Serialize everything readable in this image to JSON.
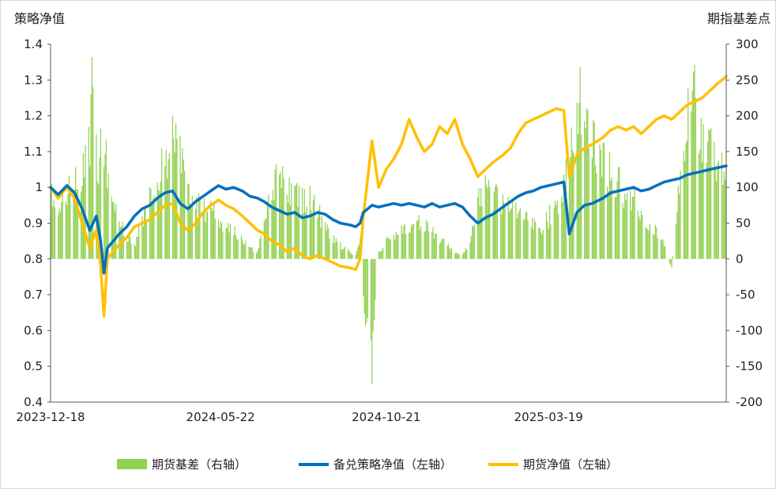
{
  "chart_data": {
    "type": "bar+line",
    "left_axis_title": "策略净值",
    "right_axis_title": "期指基差点",
    "left_ylim": [
      0.4,
      1.4
    ],
    "left_ticks": [
      "1.4",
      "1.3",
      "1.2",
      "1.1",
      "1",
      "0.9",
      "0.8",
      "0.7",
      "0.6",
      "0.5",
      "0.4"
    ],
    "right_ylim": [
      -200,
      300
    ],
    "right_ticks": [
      "300",
      "250",
      "200",
      "150",
      "100",
      "50",
      "0",
      "-50",
      "-100",
      "-150",
      "-200"
    ],
    "x_ticks": [
      "2023-12-18",
      "2024-05-22",
      "2024-10-21",
      "2025-03-19"
    ],
    "x_range": [
      "2023-12-18",
      "2025-08-29"
    ],
    "grid": false,
    "legend_position": "bottom",
    "series": [
      {
        "name": "期货基差（右轴）",
        "type": "bar",
        "axis": "right",
        "color": "#92d050",
        "points": [
          [
            "2023-12-18",
            90
          ],
          [
            "2023-12-25",
            75
          ],
          [
            "2024-01-02",
            95
          ],
          [
            "2024-01-09",
            110
          ],
          [
            "2024-01-16",
            135
          ],
          [
            "2024-01-23",
            185
          ],
          [
            "2024-01-26",
            280
          ],
          [
            "2024-01-30",
            120
          ],
          [
            "2024-02-02",
            200
          ],
          [
            "2024-02-08",
            140
          ],
          [
            "2024-02-19",
            60
          ],
          [
            "2024-02-26",
            35
          ],
          [
            "2024-03-04",
            20
          ],
          [
            "2024-03-11",
            55
          ],
          [
            "2024-03-18",
            90
          ],
          [
            "2024-03-25",
            120
          ],
          [
            "2024-04-01",
            145
          ],
          [
            "2024-04-08",
            170
          ],
          [
            "2024-04-15",
            150
          ],
          [
            "2024-04-22",
            110
          ],
          [
            "2024-04-29",
            85
          ],
          [
            "2024-05-06",
            70
          ],
          [
            "2024-05-13",
            80
          ],
          [
            "2024-05-20",
            60
          ],
          [
            "2024-05-27",
            45
          ],
          [
            "2024-06-03",
            40
          ],
          [
            "2024-06-11",
            30
          ],
          [
            "2024-06-18",
            15
          ],
          [
            "2024-06-25",
            10
          ],
          [
            "2024-07-01",
            55
          ],
          [
            "2024-07-08",
            115
          ],
          [
            "2024-07-15",
            120
          ],
          [
            "2024-07-22",
            110
          ],
          [
            "2024-07-29",
            100
          ],
          [
            "2024-08-05",
            85
          ],
          [
            "2024-08-12",
            90
          ],
          [
            "2024-08-19",
            70
          ],
          [
            "2024-08-26",
            50
          ],
          [
            "2024-09-02",
            30
          ],
          [
            "2024-09-09",
            20
          ],
          [
            "2024-09-18",
            10
          ],
          [
            "2024-09-23",
            5
          ],
          [
            "2024-09-27",
            30
          ],
          [
            "2024-09-30",
            -55
          ],
          [
            "2024-10-08",
            -160
          ],
          [
            "2024-10-14",
            10
          ],
          [
            "2024-10-21",
            25
          ],
          [
            "2024-10-28",
            35
          ],
          [
            "2024-11-04",
            40
          ],
          [
            "2024-11-11",
            45
          ],
          [
            "2024-11-18",
            55
          ],
          [
            "2024-11-25",
            50
          ],
          [
            "2024-12-02",
            40
          ],
          [
            "2024-12-09",
            30
          ],
          [
            "2024-12-16",
            20
          ],
          [
            "2024-12-23",
            10
          ],
          [
            "2024-12-30",
            5
          ],
          [
            "2025-01-06",
            25
          ],
          [
            "2025-01-13",
            90
          ],
          [
            "2025-01-20",
            100
          ],
          [
            "2025-01-27",
            95
          ],
          [
            "2025-02-05",
            85
          ],
          [
            "2025-02-12",
            75
          ],
          [
            "2025-02-19",
            65
          ],
          [
            "2025-02-26",
            55
          ],
          [
            "2025-03-05",
            50
          ],
          [
            "2025-03-12",
            45
          ],
          [
            "2025-03-19",
            60
          ],
          [
            "2025-03-26",
            80
          ],
          [
            "2025-04-02",
            100
          ],
          [
            "2025-04-09",
            195
          ],
          [
            "2025-04-16",
            230
          ],
          [
            "2025-04-23",
            200
          ],
          [
            "2025-04-30",
            160
          ],
          [
            "2025-05-08",
            145
          ],
          [
            "2025-05-15",
            130
          ],
          [
            "2025-05-22",
            110
          ],
          [
            "2025-05-29",
            95
          ],
          [
            "2025-06-05",
            85
          ],
          [
            "2025-06-12",
            70
          ],
          [
            "2025-06-19",
            55
          ],
          [
            "2025-06-26",
            40
          ],
          [
            "2025-07-03",
            20
          ],
          [
            "2025-07-10",
            -15
          ],
          [
            "2025-07-17",
            120
          ],
          [
            "2025-07-24",
            215
          ],
          [
            "2025-07-31",
            235
          ],
          [
            "2025-08-07",
            180
          ],
          [
            "2025-08-14",
            160
          ],
          [
            "2025-08-21",
            150
          ],
          [
            "2025-08-29",
            140
          ]
        ]
      },
      {
        "name": "备兑策略净值（左轴）",
        "type": "line",
        "axis": "left",
        "color": "#0070c0",
        "points": [
          [
            "2023-12-18",
            1.0
          ],
          [
            "2023-12-25",
            0.98
          ],
          [
            "2024-01-02",
            1.005
          ],
          [
            "2024-01-09",
            0.985
          ],
          [
            "2024-01-16",
            0.94
          ],
          [
            "2024-01-23",
            0.88
          ],
          [
            "2024-01-29",
            0.92
          ],
          [
            "2024-02-02",
            0.85
          ],
          [
            "2024-02-05",
            0.76
          ],
          [
            "2024-02-08",
            0.83
          ],
          [
            "2024-02-19",
            0.87
          ],
          [
            "2024-02-26",
            0.89
          ],
          [
            "2024-03-04",
            0.92
          ],
          [
            "2024-03-11",
            0.94
          ],
          [
            "2024-03-18",
            0.95
          ],
          [
            "2024-03-25",
            0.97
          ],
          [
            "2024-04-01",
            0.985
          ],
          [
            "2024-04-08",
            0.99
          ],
          [
            "2024-04-15",
            0.955
          ],
          [
            "2024-04-22",
            0.94
          ],
          [
            "2024-04-29",
            0.96
          ],
          [
            "2024-05-06",
            0.975
          ],
          [
            "2024-05-13",
            0.99
          ],
          [
            "2024-05-20",
            1.005
          ],
          [
            "2024-05-27",
            0.995
          ],
          [
            "2024-06-03",
            1.0
          ],
          [
            "2024-06-11",
            0.99
          ],
          [
            "2024-06-18",
            0.975
          ],
          [
            "2024-06-25",
            0.97
          ],
          [
            "2024-07-01",
            0.96
          ],
          [
            "2024-07-08",
            0.945
          ],
          [
            "2024-07-15",
            0.935
          ],
          [
            "2024-07-22",
            0.925
          ],
          [
            "2024-07-29",
            0.93
          ],
          [
            "2024-08-05",
            0.915
          ],
          [
            "2024-08-12",
            0.92
          ],
          [
            "2024-08-19",
            0.93
          ],
          [
            "2024-08-26",
            0.925
          ],
          [
            "2024-09-02",
            0.91
          ],
          [
            "2024-09-09",
            0.9
          ],
          [
            "2024-09-18",
            0.895
          ],
          [
            "2024-09-23",
            0.89
          ],
          [
            "2024-09-27",
            0.9
          ],
          [
            "2024-09-30",
            0.93
          ],
          [
            "2024-10-08",
            0.95
          ],
          [
            "2024-10-14",
            0.945
          ],
          [
            "2024-10-21",
            0.95
          ],
          [
            "2024-10-28",
            0.955
          ],
          [
            "2024-11-04",
            0.95
          ],
          [
            "2024-11-11",
            0.955
          ],
          [
            "2024-11-18",
            0.95
          ],
          [
            "2024-11-25",
            0.945
          ],
          [
            "2024-12-02",
            0.955
          ],
          [
            "2024-12-09",
            0.945
          ],
          [
            "2024-12-16",
            0.95
          ],
          [
            "2024-12-23",
            0.955
          ],
          [
            "2024-12-30",
            0.945
          ],
          [
            "2025-01-06",
            0.92
          ],
          [
            "2025-01-13",
            0.9
          ],
          [
            "2025-01-20",
            0.915
          ],
          [
            "2025-01-27",
            0.925
          ],
          [
            "2025-02-05",
            0.945
          ],
          [
            "2025-02-12",
            0.96
          ],
          [
            "2025-02-19",
            0.975
          ],
          [
            "2025-02-26",
            0.985
          ],
          [
            "2025-03-05",
            0.99
          ],
          [
            "2025-03-12",
            1.0
          ],
          [
            "2025-03-19",
            1.005
          ],
          [
            "2025-03-26",
            1.01
          ],
          [
            "2025-04-02",
            1.015
          ],
          [
            "2025-04-07",
            0.87
          ],
          [
            "2025-04-14",
            0.93
          ],
          [
            "2025-04-21",
            0.95
          ],
          [
            "2025-04-28",
            0.955
          ],
          [
            "2025-05-08",
            0.97
          ],
          [
            "2025-05-15",
            0.985
          ],
          [
            "2025-05-22",
            0.99
          ],
          [
            "2025-05-29",
            0.995
          ],
          [
            "2025-06-05",
            1.0
          ],
          [
            "2025-06-12",
            0.99
          ],
          [
            "2025-06-19",
            0.995
          ],
          [
            "2025-06-26",
            1.005
          ],
          [
            "2025-07-03",
            1.015
          ],
          [
            "2025-07-10",
            1.02
          ],
          [
            "2025-07-17",
            1.025
          ],
          [
            "2025-07-24",
            1.035
          ],
          [
            "2025-07-31",
            1.04
          ],
          [
            "2025-08-07",
            1.045
          ],
          [
            "2025-08-14",
            1.05
          ],
          [
            "2025-08-21",
            1.055
          ],
          [
            "2025-08-29",
            1.06
          ]
        ]
      },
      {
        "name": "期货净值（左轴）",
        "type": "line",
        "axis": "left",
        "color": "#ffc000",
        "points": [
          [
            "2023-12-18",
            1.0
          ],
          [
            "2023-12-25",
            0.97
          ],
          [
            "2024-01-02",
            1.0
          ],
          [
            "2024-01-09",
            0.97
          ],
          [
            "2024-01-16",
            0.9
          ],
          [
            "2024-01-23",
            0.83
          ],
          [
            "2024-01-29",
            0.88
          ],
          [
            "2024-02-02",
            0.78
          ],
          [
            "2024-02-05",
            0.64
          ],
          [
            "2024-02-08",
            0.8
          ],
          [
            "2024-02-19",
            0.84
          ],
          [
            "2024-02-26",
            0.86
          ],
          [
            "2024-03-04",
            0.89
          ],
          [
            "2024-03-11",
            0.9
          ],
          [
            "2024-03-18",
            0.91
          ],
          [
            "2024-03-25",
            0.93
          ],
          [
            "2024-04-01",
            0.95
          ],
          [
            "2024-04-08",
            0.955
          ],
          [
            "2024-04-15",
            0.9
          ],
          [
            "2024-04-22",
            0.88
          ],
          [
            "2024-04-29",
            0.9
          ],
          [
            "2024-05-06",
            0.93
          ],
          [
            "2024-05-13",
            0.95
          ],
          [
            "2024-05-20",
            0.965
          ],
          [
            "2024-05-27",
            0.95
          ],
          [
            "2024-06-03",
            0.94
          ],
          [
            "2024-06-11",
            0.92
          ],
          [
            "2024-06-18",
            0.9
          ],
          [
            "2024-06-25",
            0.88
          ],
          [
            "2024-07-01",
            0.87
          ],
          [
            "2024-07-08",
            0.85
          ],
          [
            "2024-07-15",
            0.84
          ],
          [
            "2024-07-22",
            0.82
          ],
          [
            "2024-07-29",
            0.83
          ],
          [
            "2024-08-05",
            0.81
          ],
          [
            "2024-08-12",
            0.8
          ],
          [
            "2024-08-19",
            0.81
          ],
          [
            "2024-08-26",
            0.8
          ],
          [
            "2024-09-02",
            0.79
          ],
          [
            "2024-09-09",
            0.78
          ],
          [
            "2024-09-18",
            0.775
          ],
          [
            "2024-09-23",
            0.77
          ],
          [
            "2024-09-27",
            0.8
          ],
          [
            "2024-09-30",
            0.92
          ],
          [
            "2024-10-08",
            1.13
          ],
          [
            "2024-10-14",
            1.0
          ],
          [
            "2024-10-21",
            1.05
          ],
          [
            "2024-10-28",
            1.08
          ],
          [
            "2024-11-04",
            1.12
          ],
          [
            "2024-11-11",
            1.19
          ],
          [
            "2024-11-18",
            1.14
          ],
          [
            "2024-11-25",
            1.1
          ],
          [
            "2024-12-02",
            1.12
          ],
          [
            "2024-12-09",
            1.17
          ],
          [
            "2024-12-16",
            1.15
          ],
          [
            "2024-12-23",
            1.19
          ],
          [
            "2024-12-30",
            1.12
          ],
          [
            "2025-01-06",
            1.08
          ],
          [
            "2025-01-13",
            1.03
          ],
          [
            "2025-01-20",
            1.05
          ],
          [
            "2025-01-27",
            1.07
          ],
          [
            "2025-02-05",
            1.09
          ],
          [
            "2025-02-12",
            1.11
          ],
          [
            "2025-02-19",
            1.15
          ],
          [
            "2025-02-26",
            1.18
          ],
          [
            "2025-03-05",
            1.19
          ],
          [
            "2025-03-12",
            1.2
          ],
          [
            "2025-03-19",
            1.21
          ],
          [
            "2025-03-26",
            1.22
          ],
          [
            "2025-04-02",
            1.215
          ],
          [
            "2025-04-07",
            1.03
          ],
          [
            "2025-04-14",
            1.09
          ],
          [
            "2025-04-21",
            1.11
          ],
          [
            "2025-04-28",
            1.12
          ],
          [
            "2025-05-08",
            1.14
          ],
          [
            "2025-05-15",
            1.16
          ],
          [
            "2025-05-22",
            1.17
          ],
          [
            "2025-05-29",
            1.16
          ],
          [
            "2025-06-05",
            1.17
          ],
          [
            "2025-06-12",
            1.15
          ],
          [
            "2025-06-19",
            1.17
          ],
          [
            "2025-06-26",
            1.19
          ],
          [
            "2025-07-03",
            1.2
          ],
          [
            "2025-07-10",
            1.19
          ],
          [
            "2025-07-17",
            1.21
          ],
          [
            "2025-07-24",
            1.23
          ],
          [
            "2025-07-31",
            1.24
          ],
          [
            "2025-08-07",
            1.25
          ],
          [
            "2025-08-14",
            1.27
          ],
          [
            "2025-08-21",
            1.29
          ],
          [
            "2025-08-29",
            1.31
          ]
        ]
      }
    ]
  }
}
